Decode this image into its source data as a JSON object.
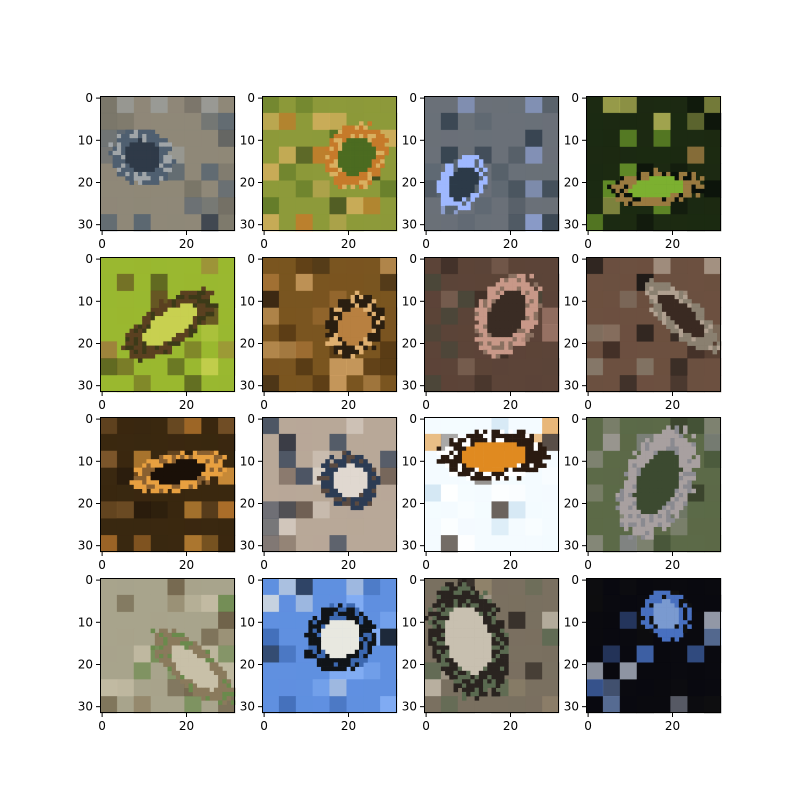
{
  "figure": {
    "grid": {
      "rows": 4,
      "cols": 4
    },
    "image_size": 32,
    "xticks": [
      0,
      20
    ],
    "yticks": [
      0,
      10,
      20,
      30
    ],
    "panels": [
      {
        "name": "image-r1c1",
        "bg": "#8f8878",
        "subject": "dark blue bird in flight over pale water",
        "colors": [
          "#4f5f70",
          "#2f3a48",
          "#a0a5a8",
          "#6d6a60"
        ]
      },
      {
        "name": "image-r1c2",
        "bg": "#8d9a3a",
        "subject": "orange and green foliage",
        "colors": [
          "#c67a2a",
          "#4b6b20",
          "#d9b060",
          "#2f3a18"
        ]
      },
      {
        "name": "image-r1c3",
        "bg": "#6a7078",
        "subject": "white-blue streak over grey",
        "colors": [
          "#9fb8ff",
          "#2c3a48",
          "#5a6570",
          "#3d4a55"
        ]
      },
      {
        "name": "image-r1c4",
        "bg": "#1c2a12",
        "subject": "flower among green leaves",
        "colors": [
          "#9a7a40",
          "#7cb030",
          "#0a100a",
          "#c8c860"
        ]
      },
      {
        "name": "image-r2c1",
        "bg": "#9ab830",
        "subject": "brown bird on bright green",
        "colors": [
          "#5a4020",
          "#c8d050",
          "#3c3a18",
          "#a07040"
        ]
      },
      {
        "name": "image-r2c2",
        "bg": "#7a5520",
        "subject": "brown camouflaged creature",
        "colors": [
          "#2a1e10",
          "#b88040",
          "#e0b070",
          "#4a3010"
        ]
      },
      {
        "name": "image-r2c3",
        "bg": "#5c4438",
        "subject": "pale shape on brown ground",
        "colors": [
          "#c89888",
          "#3a2c24",
          "#8a7060",
          "#40483a"
        ]
      },
      {
        "name": "image-r2c4",
        "bg": "#6c5040",
        "subject": "grey bird silhouette on brown",
        "colors": [
          "#8a8070",
          "#3a2a22",
          "#b0a090",
          "#101010"
        ]
      },
      {
        "name": "image-r3c1",
        "bg": "#3a2810",
        "subject": "orange bird against dark",
        "colors": [
          "#e8a040",
          "#1a1008",
          "#8a6030",
          "#c88030"
        ]
      },
      {
        "name": "image-r3c2",
        "bg": "#b8a898",
        "subject": "dark blue shape on grey",
        "colors": [
          "#2c3c54",
          "#e0d8d0",
          "#5a4a40",
          "#1a2030"
        ]
      },
      {
        "name": "image-r3c3",
        "bg": "#f4fbff",
        "subject": "black and orange bird diagonal on white",
        "colors": [
          "#2a1a10",
          "#e08a20",
          "#ffffff",
          "#c8e0f0"
        ]
      },
      {
        "name": "image-r3c4",
        "bg": "#5c6a48",
        "subject": "grey bird on green field",
        "colors": [
          "#a8a0a0",
          "#3c4a30",
          "#8a8a90",
          "#202418"
        ]
      },
      {
        "name": "image-r4c1",
        "bg": "#a8a48c",
        "subject": "bird outline on grey-green",
        "colors": [
          "#8a7a5c",
          "#c8c0a8",
          "#6a8a4c",
          "#5a4a30"
        ]
      },
      {
        "name": "image-r4c2",
        "bg": "#6090e0",
        "subject": "dark bird with white wing on blue",
        "colors": [
          "#101418",
          "#e8e8e0",
          "#3c68b0",
          "#8ab4f8"
        ]
      },
      {
        "name": "image-r4c3",
        "bg": "#7a7060",
        "subject": "blurred scene with bird",
        "colors": [
          "#2a2420",
          "#c8c0b0",
          "#5a6a50",
          "#9a8a70"
        ]
      },
      {
        "name": "image-r4c4",
        "bg": "#0a0a10",
        "subject": "blue sky shape on black",
        "colors": [
          "#4870c0",
          "#7a9ad0",
          "#101010",
          "#c0c8d8"
        ]
      }
    ]
  }
}
